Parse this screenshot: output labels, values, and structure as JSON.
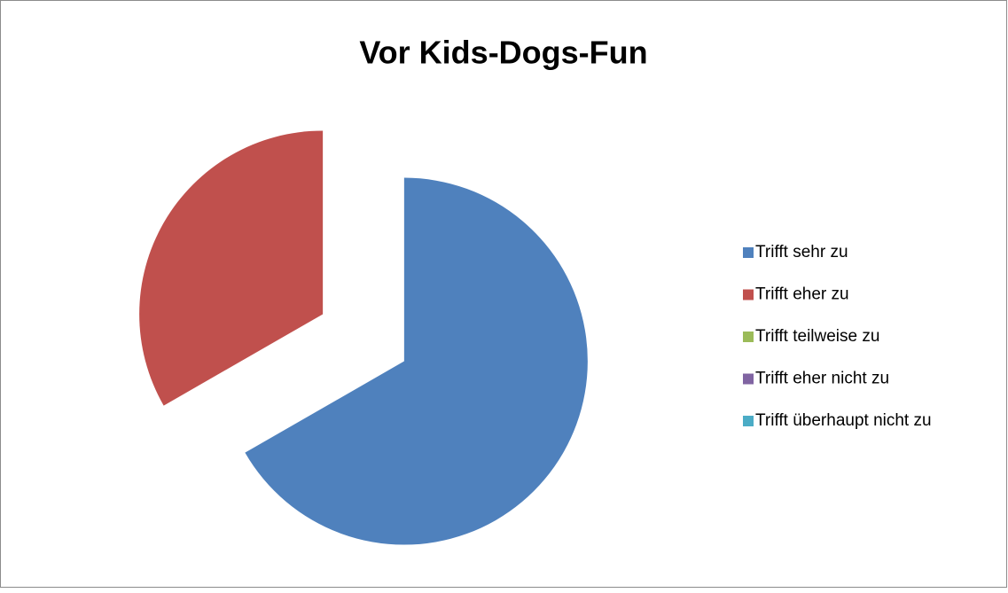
{
  "chart_data": {
    "type": "pie",
    "title": "Vor Kids-Dogs-Fun",
    "categories": [
      "Trifft sehr zu",
      "Trifft eher zu",
      "Trifft teilweise zu",
      "Trifft eher nicht zu",
      "Trifft überhaupt nicht zu"
    ],
    "values": [
      66.7,
      33.3,
      0,
      0,
      0
    ],
    "colors": [
      "#4f81bd",
      "#c0504d",
      "#9bbb59",
      "#8064a2",
      "#4bacc6"
    ],
    "legend": "right"
  }
}
